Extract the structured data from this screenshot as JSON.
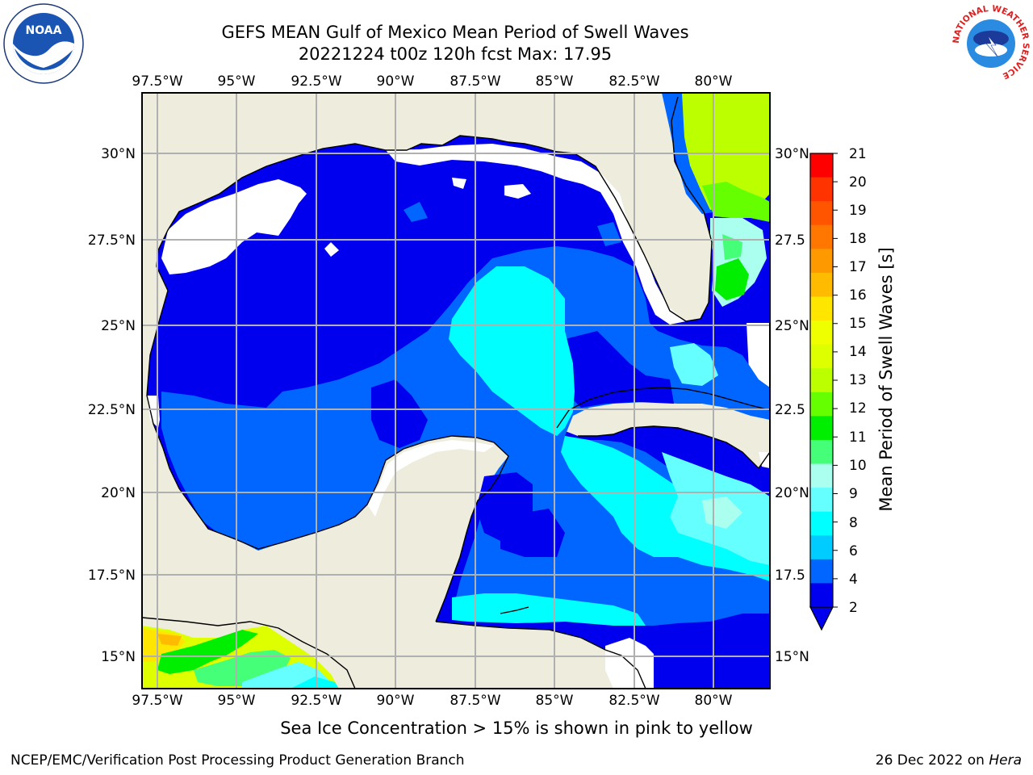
{
  "header": {
    "title_line1": "GEFS MEAN Gulf of Mexico Mean Period of Swell Waves",
    "title_line2": "20221224 t00z 120h fcst   Max: 17.95"
  },
  "map": {
    "lon_ticks_top": [
      "97.5°W",
      "95°W",
      "92.5°W",
      "90°W",
      "87.5°W",
      "85°W",
      "82.5°W",
      "80°W"
    ],
    "lon_ticks_bottom": [
      "97.5°W",
      "95°W",
      "92.5°W",
      "90°W",
      "87.5°W",
      "85°W",
      "82.5°W",
      "80°W"
    ],
    "lat_ticks_left": [
      "30°N",
      "27.5°N",
      "25°N",
      "22.5°N",
      "20°N",
      "17.5°N",
      "15°N"
    ],
    "lat_ticks_right": [
      "30°N",
      "27.5",
      "25°N",
      "22.5",
      "20°N",
      "17.5",
      "15°N"
    ],
    "land_color": "#eeecdd",
    "grid_color": "#b0b0b0"
  },
  "colorbar": {
    "label": "Mean Period of Swell Waves [s]",
    "ticks": [
      "21",
      "20",
      "19",
      "18",
      "17",
      "16",
      "15",
      "14",
      "13",
      "12",
      "11",
      "10",
      "9",
      "8",
      "6",
      "4",
      "2"
    ],
    "colors": [
      "#ff0000",
      "#ff3300",
      "#ff5500",
      "#ff7700",
      "#ff9900",
      "#ffbb00",
      "#ffe600",
      "#f0ff00",
      "#ddff00",
      "#bbff00",
      "#66ff00",
      "#00ee00",
      "#44ff77",
      "#aaffee",
      "#66ffff",
      "#00ffff",
      "#00ccff",
      "#0066ff",
      "#0000ee"
    ]
  },
  "notes": {
    "ice_note": "Sea Ice Concentration > 15% is shown in pink to yellow"
  },
  "footer": {
    "left": "NCEP/EMC/Verification Post Processing Product Generation Branch",
    "right_date": "26 Dec 2022 on",
    "right_host": "Hera"
  },
  "logos": {
    "left": "noaa-logo",
    "right": "nws-logo",
    "nws_ring_text": "NATIONAL WEATHER SERVICE"
  }
}
